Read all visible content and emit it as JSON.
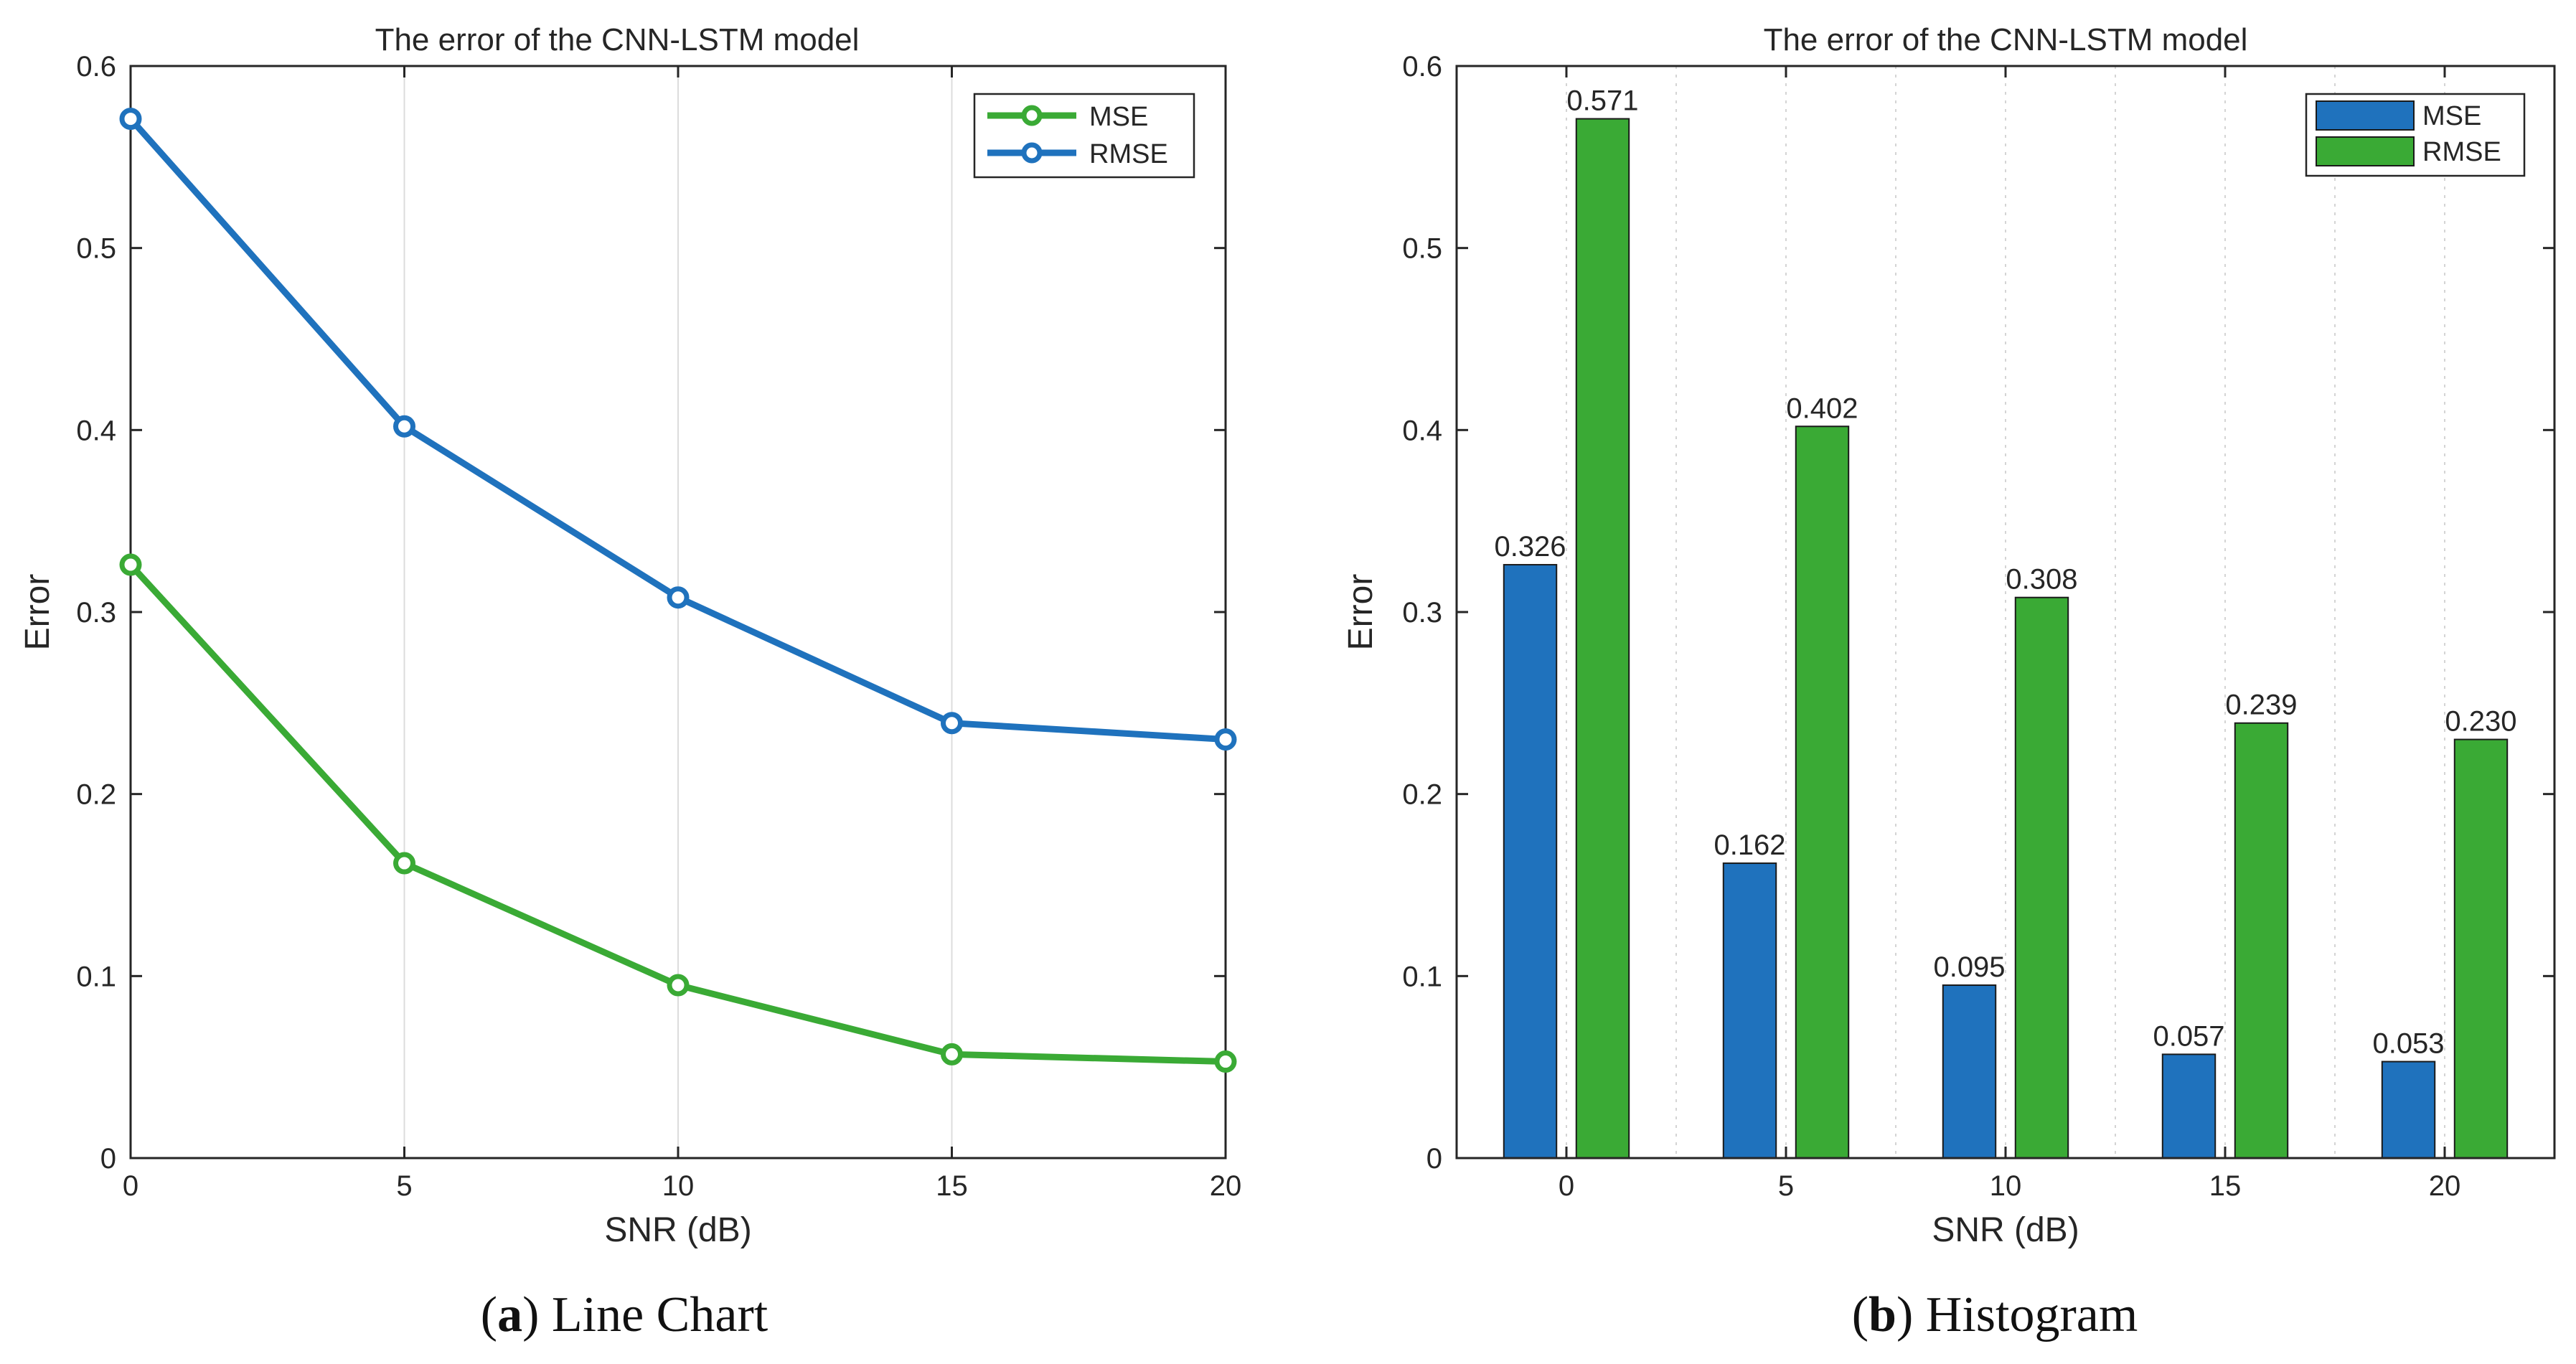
{
  "chart_data": [
    {
      "type": "line",
      "title": "The error of the CNN-LSTM model",
      "xlabel": "SNR (dB)",
      "ylabel": "Error",
      "x": [
        0,
        5,
        10,
        15,
        20
      ],
      "xticks": [
        "0",
        "5",
        "10",
        "15",
        "20"
      ],
      "yticks": [
        "0",
        "0.1",
        "0.2",
        "0.3",
        "0.4",
        "0.5",
        "0.6"
      ],
      "xlim": [
        0,
        20
      ],
      "ylim": [
        0,
        0.6
      ],
      "grid": "vertical",
      "legend_position": "top-right",
      "series": [
        {
          "name": "MSE",
          "color": "#3aaa35",
          "values": [
            0.326,
            0.162,
            0.095,
            0.057,
            0.053
          ]
        },
        {
          "name": "RMSE",
          "color": "#1f72bd",
          "values": [
            0.571,
            0.402,
            0.308,
            0.239,
            0.23
          ]
        }
      ],
      "caption_letter": "a",
      "caption_text": " Line Chart"
    },
    {
      "type": "bar",
      "title": "The error of the CNN-LSTM model",
      "xlabel": "SNR (dB)",
      "ylabel": "Error",
      "categories": [
        "0",
        "5",
        "10",
        "15",
        "20"
      ],
      "yticks": [
        "0",
        "0.1",
        "0.2",
        "0.3",
        "0.4",
        "0.5",
        "0.6"
      ],
      "ylim": [
        0,
        0.6
      ],
      "grid": "vertical-dotted",
      "legend_position": "top-right",
      "series": [
        {
          "name": "MSE",
          "color": "#1f72bd",
          "values": [
            0.326,
            0.162,
            0.095,
            0.057,
            0.053
          ],
          "labels": [
            "0.326",
            "0.162",
            "0.095",
            "0.057",
            "0.053"
          ]
        },
        {
          "name": "RMSE",
          "color": "#3aaa35",
          "values": [
            0.571,
            0.402,
            0.308,
            0.239,
            0.23
          ],
          "labels": [
            "0.571",
            "0.402",
            "0.308",
            "0.239",
            "0.230"
          ]
        }
      ],
      "caption_letter": "b",
      "caption_text": " Histogram"
    }
  ]
}
